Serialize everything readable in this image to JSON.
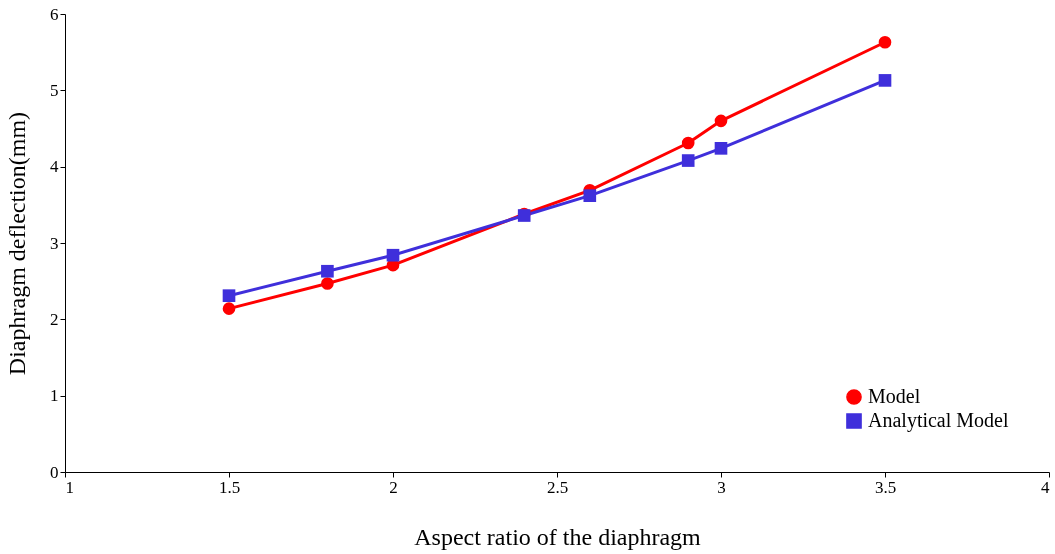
{
  "chart_data": {
    "type": "line",
    "xlabel": "Aspect ratio of the diaphragm",
    "ylabel": "Diaphragm deflection(mm)",
    "x": [
      1.5,
      1.8,
      2,
      2.4,
      2.6,
      2.9,
      3,
      3.5
    ],
    "series": [
      {
        "name": "Model",
        "color": "#ff0000",
        "marker": "circle",
        "values": [
          2.14,
          2.47,
          2.71,
          3.38,
          3.69,
          4.31,
          4.6,
          5.63
        ]
      },
      {
        "name": "Analytical Model",
        "color": "#3f2fdb",
        "marker": "square",
        "values": [
          2.31,
          2.63,
          2.84,
          3.36,
          3.62,
          4.08,
          4.24,
          5.13
        ]
      }
    ],
    "xlim": [
      1,
      4
    ],
    "xticks": [
      1,
      1.5,
      2,
      2.5,
      3,
      3.5,
      4
    ],
    "ylim": [
      0,
      6
    ],
    "yticks": [
      0,
      1,
      2,
      3,
      4,
      5,
      6
    ],
    "grid": false,
    "legend": "bottom right",
    "line_style": "solid"
  }
}
